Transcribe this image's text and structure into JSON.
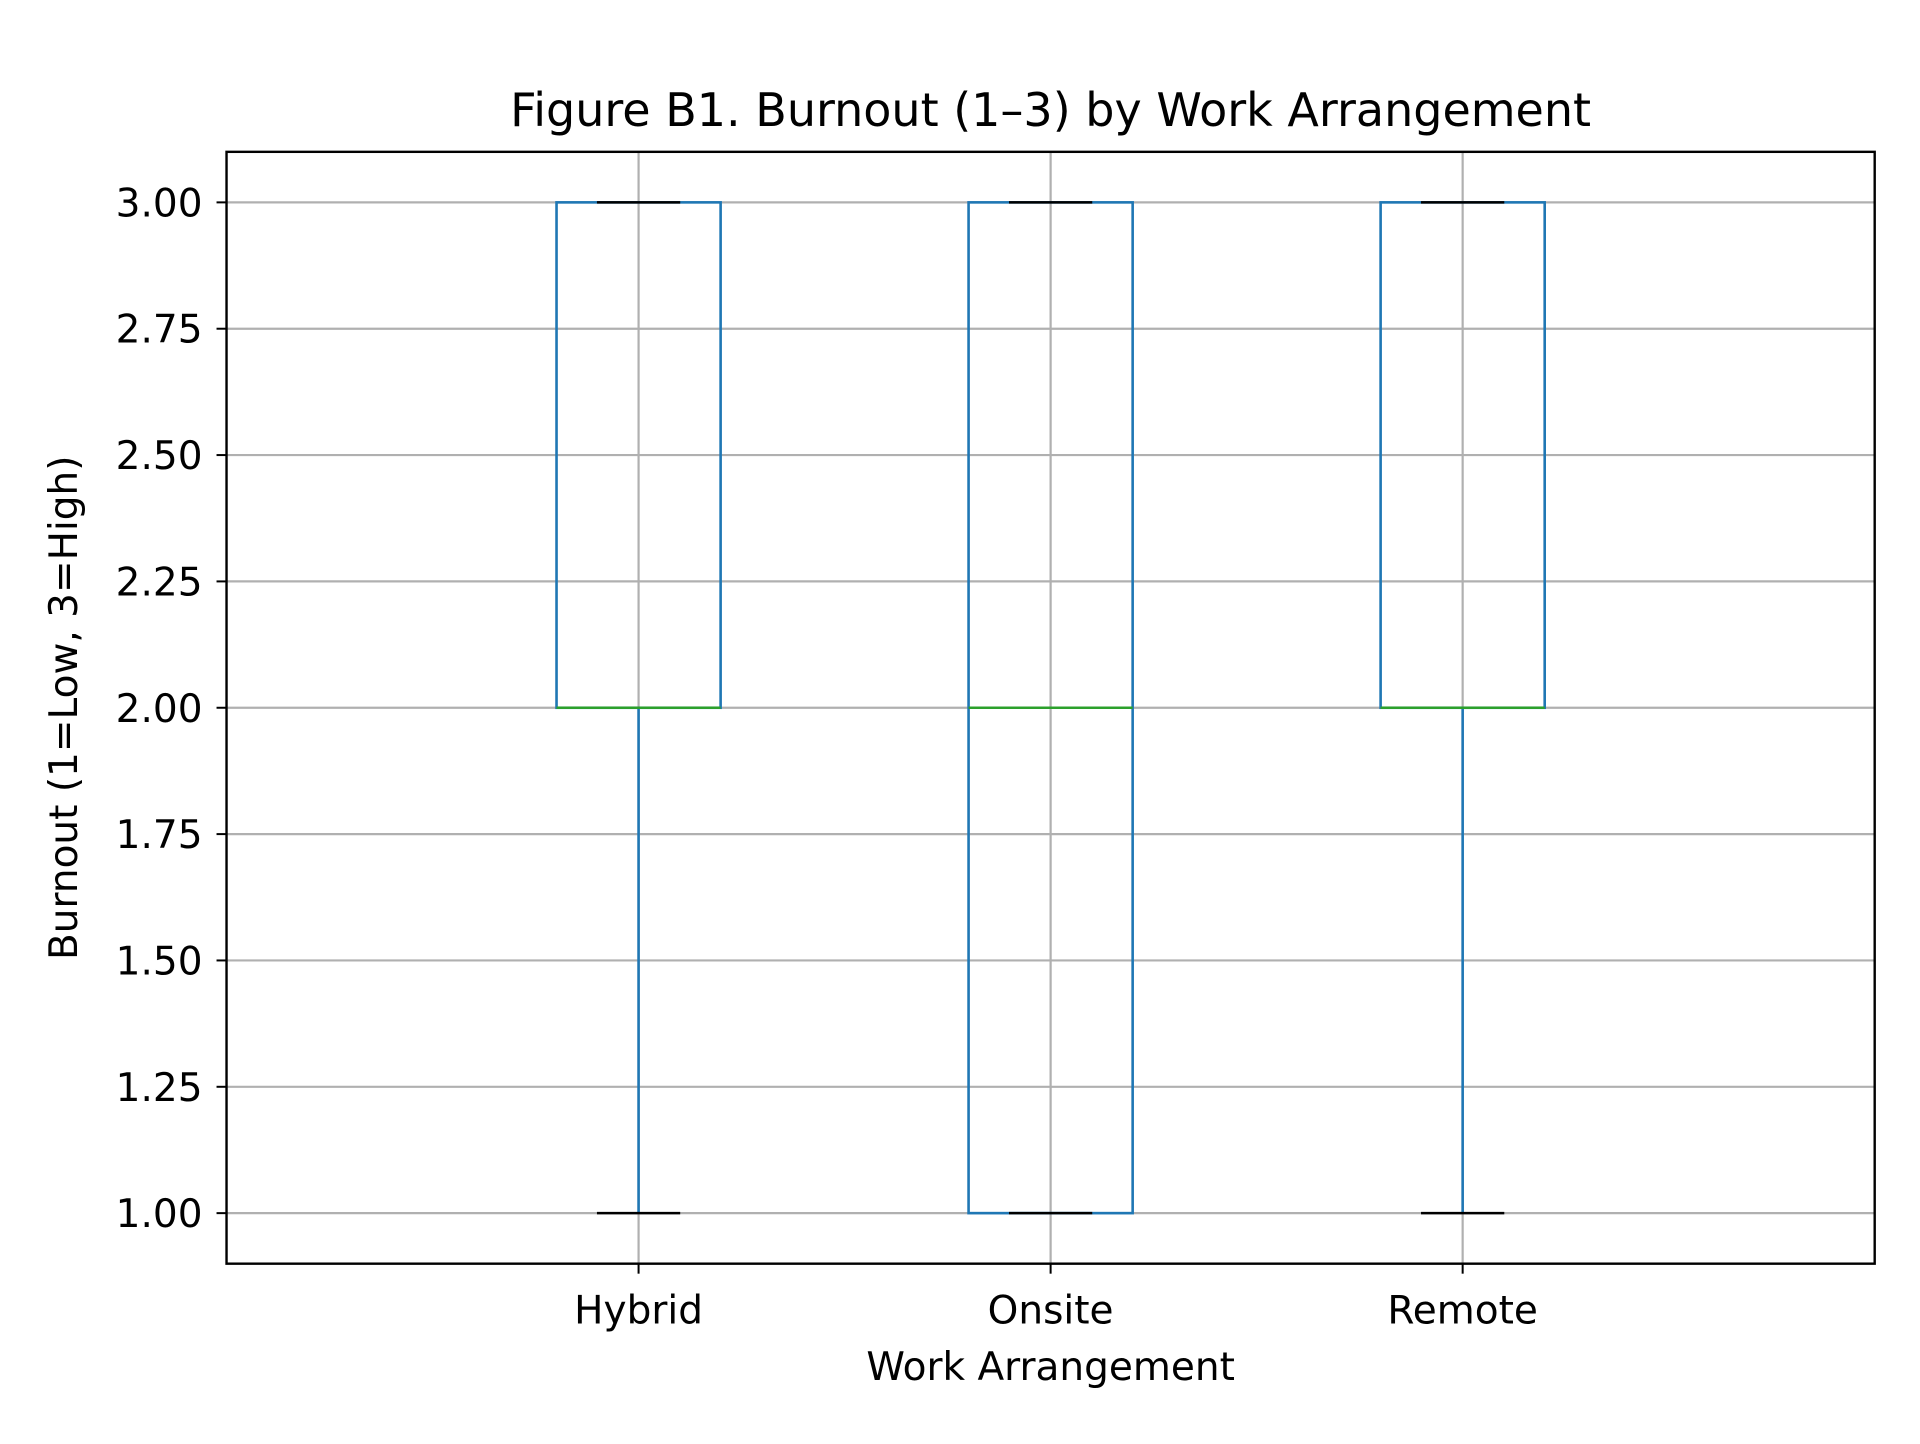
{
  "chart_data": {
    "type": "box",
    "title": "Figure B1. Burnout (1–3) by Work Arrangement",
    "xlabel": "Work Arrangement",
    "ylabel": "Burnout (1=Low, 3=High)",
    "ylim": [
      0.9,
      3.1
    ],
    "yticks": [
      "1.00",
      "1.25",
      "1.50",
      "1.75",
      "2.00",
      "2.25",
      "2.50",
      "2.75",
      "3.00"
    ],
    "grid": true,
    "categories": [
      "Hybrid",
      "Onsite",
      "Remote"
    ],
    "boxes": [
      {
        "category": "Hybrid",
        "whisker_low": 1.0,
        "q1": 2.0,
        "median": 2.0,
        "q3": 3.0,
        "whisker_high": 3.0
      },
      {
        "category": "Onsite",
        "whisker_low": 1.0,
        "q1": 1.0,
        "median": 2.0,
        "q3": 3.0,
        "whisker_high": 3.0
      },
      {
        "category": "Remote",
        "whisker_low": 1.0,
        "q1": 2.0,
        "median": 2.0,
        "q3": 3.0,
        "whisker_high": 3.0
      }
    ],
    "colors": {
      "box": "#1f77b4",
      "median": "#2ca02c",
      "caps": "#000000",
      "grid": "#b0b0b0",
      "axes": "#000000"
    }
  }
}
